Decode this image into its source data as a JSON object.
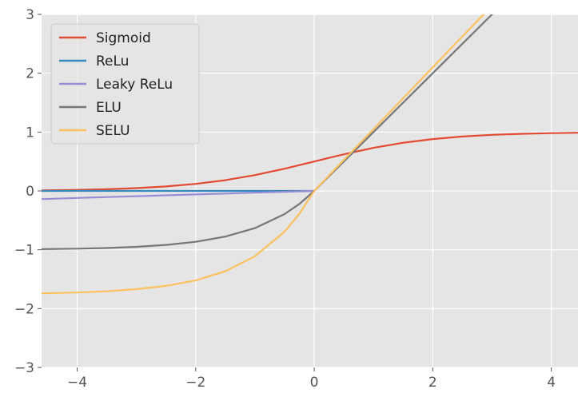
{
  "chart_data": {
    "type": "line",
    "title": "",
    "xlabel": "",
    "ylabel": "",
    "xlim": [
      -4.6,
      4.45
    ],
    "ylim": [
      -3,
      3
    ],
    "x_ticks": [
      -4,
      -2,
      0,
      2,
      4
    ],
    "x_tick_labels": [
      "−4",
      "−2",
      "0",
      "2",
      "4"
    ],
    "y_ticks": [
      -3,
      -2,
      -1,
      0,
      1,
      2,
      3
    ],
    "y_tick_labels": [
      "−3",
      "−2",
      "−1",
      "0",
      "1",
      "2",
      "3"
    ],
    "grid": true,
    "legend_position": "upper-left",
    "background_color": "#e5e5e5",
    "grid_color": "#ffffff",
    "x": [
      -4.6,
      -4.0,
      -3.5,
      -3.0,
      -2.5,
      -2.0,
      -1.5,
      -1.0,
      -0.5,
      -0.25,
      0.0,
      0.25,
      0.5,
      1.0,
      1.5,
      2.0,
      2.5,
      3.0,
      3.5,
      4.0,
      4.45
    ],
    "series": [
      {
        "name": "Sigmoid",
        "color": "#e24a33",
        "values": [
          0.01,
          0.018,
          0.029,
          0.047,
          0.076,
          0.119,
          0.182,
          0.269,
          0.378,
          0.438,
          0.5,
          0.562,
          0.622,
          0.731,
          0.818,
          0.881,
          0.924,
          0.953,
          0.971,
          0.982,
          0.988
        ]
      },
      {
        "name": "ReLu",
        "color": "#348abd",
        "values": [
          0,
          0,
          0,
          0,
          0,
          0,
          0,
          0,
          0,
          0,
          0,
          null,
          null,
          null,
          null,
          null,
          null,
          null,
          null,
          null,
          null
        ]
      },
      {
        "name": "Leaky ReLu",
        "color": "#988ed5",
        "values": [
          -0.14,
          -0.12,
          -0.105,
          -0.09,
          -0.075,
          -0.06,
          -0.045,
          -0.03,
          -0.015,
          -0.008,
          0,
          null,
          null,
          null,
          null,
          null,
          null,
          null,
          null,
          null,
          null
        ]
      },
      {
        "name": "ELU",
        "color": "#777777",
        "values": [
          -0.99,
          -0.982,
          -0.97,
          -0.95,
          -0.918,
          -0.865,
          -0.777,
          -0.632,
          -0.393,
          -0.221,
          0,
          0.25,
          0.5,
          1.0,
          1.5,
          2.0,
          2.5,
          3.0,
          null,
          null,
          null
        ]
      },
      {
        "name": "SELU",
        "color": "#fbc15e",
        "values": [
          -1.74,
          -1.727,
          -1.705,
          -1.67,
          -1.614,
          -1.52,
          -1.366,
          -1.111,
          -0.692,
          -0.388,
          0,
          0.263,
          0.525,
          1.05,
          1.575,
          2.1,
          2.625,
          3.15,
          null,
          null,
          null
        ]
      }
    ]
  }
}
